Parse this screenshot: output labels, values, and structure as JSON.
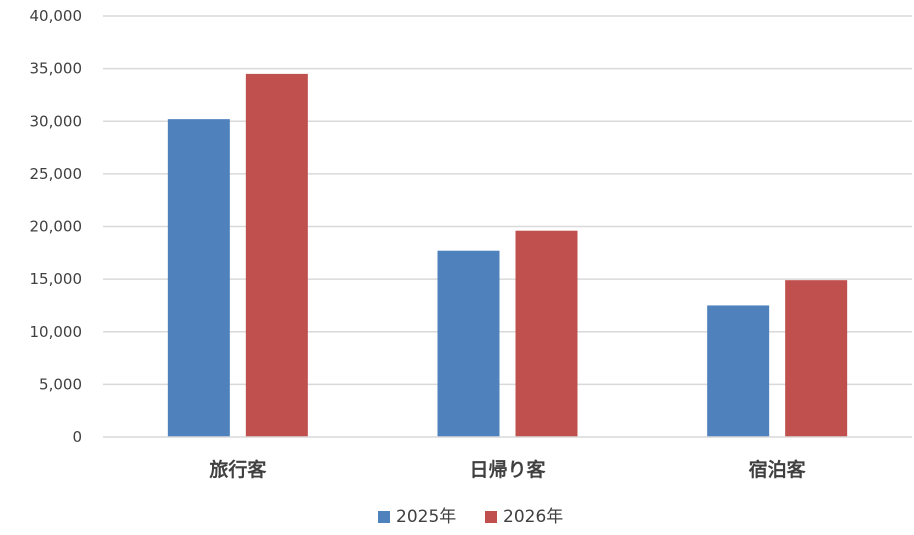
{
  "chart_data": {
    "type": "bar",
    "categories": [
      "旅行客",
      "日帰り客",
      "宿泊客"
    ],
    "series": [
      {
        "name": "2025年",
        "values": [
          30200,
          17700,
          12500
        ],
        "color": "#4f81bd"
      },
      {
        "name": "2026年",
        "values": [
          34500,
          19600,
          14900
        ],
        "color": "#c0504d"
      }
    ],
    "ylim": [
      0,
      40000
    ],
    "y_ticks": [
      "0",
      "5,000",
      "10,000",
      "15,000",
      "20,000",
      "25,000",
      "30,000",
      "35,000",
      "40,000"
    ],
    "grid": true,
    "legend_position": "bottom"
  }
}
